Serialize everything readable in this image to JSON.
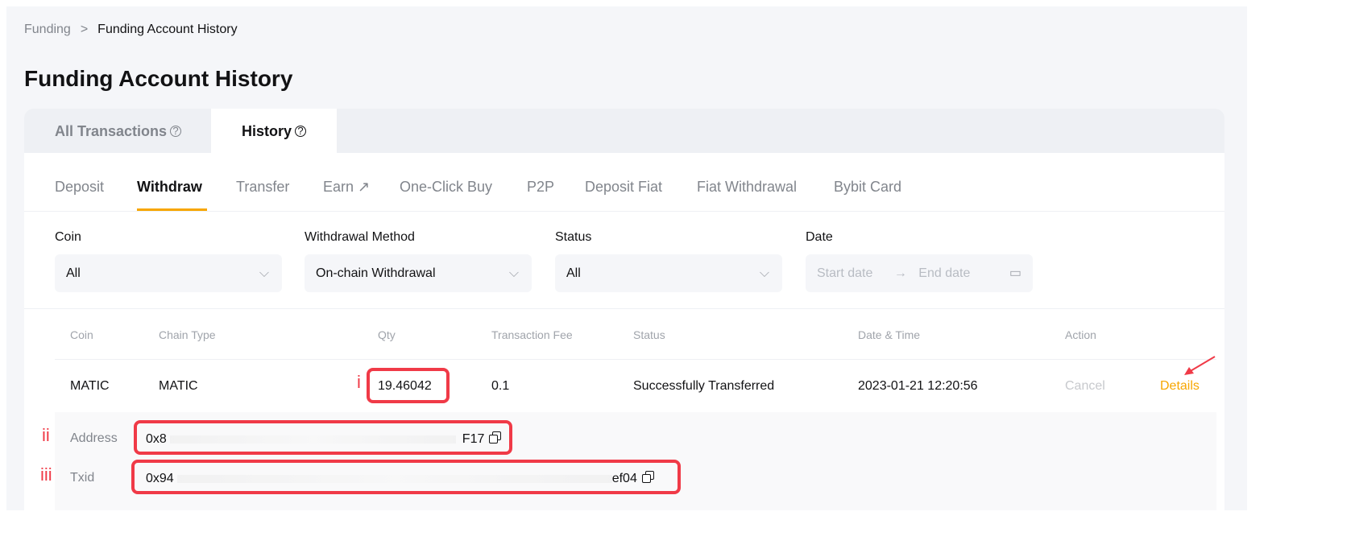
{
  "breadcrumb": {
    "parent": "Funding",
    "separator": ">",
    "current": "Funding Account History"
  },
  "page_title": "Funding Account History",
  "main_tabs": [
    {
      "label": "All Transactions",
      "active": false
    },
    {
      "label": "History",
      "active": true
    }
  ],
  "sub_tabs": [
    {
      "label": "Deposit"
    },
    {
      "label": "Withdraw",
      "active": true
    },
    {
      "label": "Transfer"
    },
    {
      "label": "Earn ↗"
    },
    {
      "label": "One-Click Buy"
    },
    {
      "label": "P2P"
    },
    {
      "label": "Deposit Fiat"
    },
    {
      "label": "Fiat Withdrawal"
    },
    {
      "label": "Bybit Card"
    }
  ],
  "filters": {
    "coin": {
      "label": "Coin",
      "value": "All"
    },
    "method": {
      "label": "Withdrawal Method",
      "value": "On-chain Withdrawal"
    },
    "status": {
      "label": "Status",
      "value": "All"
    },
    "date": {
      "label": "Date",
      "start_placeholder": "Start date",
      "end_placeholder": "End date",
      "arrow": "→"
    }
  },
  "table": {
    "headers": [
      "Coin",
      "Chain Type",
      "Qty",
      "Transaction Fee",
      "Status",
      "Date & Time",
      "Action"
    ],
    "row": {
      "coin": "MATIC",
      "chain": "MATIC",
      "qty": "19.46042",
      "fee": "0.1",
      "status": "Successfully Transferred",
      "datetime": "2023-01-21 12:20:56",
      "cancel": "Cancel",
      "details": "Details"
    },
    "detail": {
      "address_label": "Address",
      "address_start": "0x8",
      "address_end": "F17",
      "txid_label": "Txid",
      "txid_start": "0x94",
      "txid_end": "ef04"
    }
  },
  "annotations": {
    "i": "i",
    "ii": "ii",
    "iii": "iii"
  },
  "colors": {
    "accent": "#f7a600",
    "annotation": "#f03a47"
  }
}
